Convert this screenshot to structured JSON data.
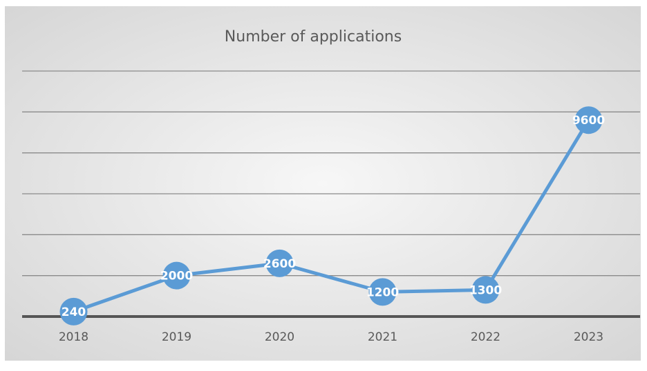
{
  "chart_data": {
    "type": "line",
    "title": "Number of applications",
    "categories": [
      "2018",
      "2019",
      "2020",
      "2021",
      "2022",
      "2023"
    ],
    "values": [
      240,
      2000,
      2600,
      1200,
      1300,
      9600
    ],
    "color": "#5b9bd5",
    "ylim": [
      0,
      12000
    ],
    "yticks": [
      0,
      2000,
      4000,
      6000,
      8000,
      10000,
      12000
    ],
    "grid": true
  }
}
